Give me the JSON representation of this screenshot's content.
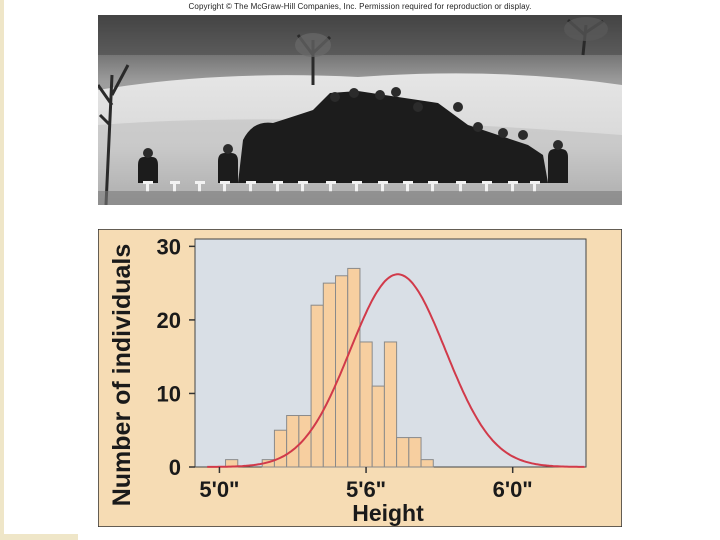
{
  "copyright": "Copyright © The McGraw-Hill Companies, Inc. Permission required for reproduction or display.",
  "colors": {
    "panel_bg": "#f6dcb4",
    "plot_bg": "#d9dfe6",
    "bar_fill": "#f7cfa0",
    "bar_stroke": "#8a8a8a",
    "curve": "#d13a4a",
    "frame_border": "#333333"
  },
  "photo": {
    "description_icon": "soldiers-photo-icon"
  },
  "chart_data": {
    "type": "bar",
    "ylabel": "Number of individuals",
    "xlabel": "Height",
    "ylim": [
      0,
      31
    ],
    "yticks": [
      0,
      10,
      20,
      30
    ],
    "xticks": [
      {
        "inches": 60,
        "label": "5'0\""
      },
      {
        "inches": 66,
        "label": "5'6\""
      },
      {
        "inches": 72,
        "label": "6'0\""
      }
    ],
    "xlim": [
      59,
      75
    ],
    "bar_start": 60.25,
    "bar_width": 0.5,
    "values": [
      1,
      0,
      0,
      1,
      5,
      7,
      7,
      22,
      25,
      26,
      27,
      17,
      11,
      17,
      4,
      4,
      1
    ],
    "curve": {
      "mean": 67.3,
      "sd": 1.95,
      "peak": 26.2
    },
    "grid": false,
    "legend": "none"
  }
}
